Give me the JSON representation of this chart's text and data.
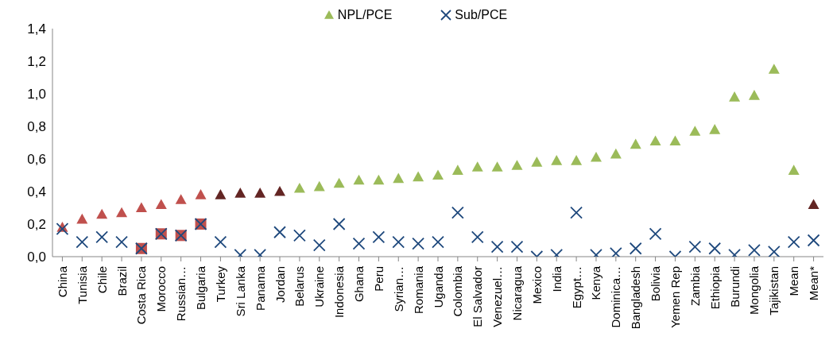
{
  "chart_data": {
    "type": "scatter",
    "categories": [
      "China",
      "Tunisia",
      "Chile",
      "Brazil",
      "Costa Rica",
      "Morocco",
      "Russian…",
      "Bulgaria",
      "Turkey",
      "Sri Lanka",
      "Panama",
      "Jordan",
      "Belarus",
      "Ukraine",
      "Indonesia",
      "Ghana",
      "Peru",
      "Syrian…",
      "Romania",
      "Uganda",
      "Colombia",
      "El Salvador",
      "Venezuel…",
      "Nicaragua",
      "Mexico",
      "India",
      "Egypt…",
      "Kenya",
      "Dominica…",
      "Bangladesh",
      "Bolivia",
      "Yemen Rep",
      "Zambia",
      "Ethiopia",
      "Burundi",
      "Mongolia",
      "Tajikistan",
      "Mean",
      "Mean*"
    ],
    "series": [
      {
        "name": "NPL/PCE",
        "marker": "triangle",
        "color": "#9bbb59",
        "colors": [
          "#c0504d",
          "#c0504d",
          "#c0504d",
          "#c0504d",
          "#c0504d",
          "#c0504d",
          "#c0504d",
          "#c0504d",
          "#632523",
          "#632523",
          "#632523",
          "#632523",
          "#9bbb59",
          "#9bbb59",
          "#9bbb59",
          "#9bbb59",
          "#9bbb59",
          "#9bbb59",
          "#9bbb59",
          "#9bbb59",
          "#9bbb59",
          "#9bbb59",
          "#9bbb59",
          "#9bbb59",
          "#9bbb59",
          "#9bbb59",
          "#9bbb59",
          "#9bbb59",
          "#9bbb59",
          "#9bbb59",
          "#9bbb59",
          "#9bbb59",
          "#9bbb59",
          "#9bbb59",
          "#9bbb59",
          "#9bbb59",
          "#9bbb59",
          "#9bbb59",
          "#632523"
        ],
        "values": [
          0.18,
          0.23,
          0.26,
          0.27,
          0.3,
          0.32,
          0.35,
          0.38,
          0.38,
          0.39,
          0.39,
          0.4,
          0.42,
          0.43,
          0.45,
          0.47,
          0.47,
          0.48,
          0.49,
          0.5,
          0.53,
          0.55,
          0.55,
          0.56,
          0.58,
          0.59,
          0.59,
          0.61,
          0.63,
          0.69,
          0.71,
          0.71,
          0.77,
          0.78,
          0.98,
          0.99,
          1.15,
          0.53,
          0.32
        ]
      },
      {
        "marker": "square",
        "color": "#c0504d",
        "values": [
          null,
          null,
          null,
          null,
          0.05,
          0.14,
          0.13,
          0.2,
          null,
          null,
          null,
          null,
          null,
          null,
          null,
          null,
          null,
          null,
          null,
          null,
          null,
          null,
          null,
          null,
          null,
          null,
          null,
          null,
          null,
          null,
          null,
          null,
          null,
          null,
          null,
          null,
          null,
          null,
          null
        ]
      },
      {
        "name": "Sub/PCE",
        "marker": "cross",
        "color": "#1f497d",
        "values": [
          0.17,
          0.09,
          0.12,
          0.09,
          0.05,
          0.14,
          0.13,
          0.2,
          0.09,
          0.01,
          0.01,
          0.15,
          0.13,
          0.07,
          0.2,
          0.08,
          0.12,
          0.09,
          0.08,
          0.09,
          0.27,
          0.12,
          0.06,
          0.06,
          0.0,
          0.01,
          0.27,
          0.01,
          0.02,
          0.05,
          0.14,
          0.0,
          0.06,
          0.05,
          0.01,
          0.04,
          0.03,
          0.09,
          0.1
        ]
      }
    ],
    "ylim": [
      0,
      1.4
    ],
    "yticks": [
      {
        "value": 0,
        "label": "0,0"
      },
      {
        "value": 0.2,
        "label": "0,2"
      },
      {
        "value": 0.4,
        "label": "0,4"
      },
      {
        "value": 0.6,
        "label": "0,6"
      },
      {
        "value": 0.8,
        "label": "0,8"
      },
      {
        "value": 1.0,
        "label": "1,0"
      },
      {
        "value": 1.2,
        "label": "1,2"
      },
      {
        "value": 1.4,
        "label": "1,4"
      }
    ],
    "grid": false,
    "legend": "top"
  }
}
